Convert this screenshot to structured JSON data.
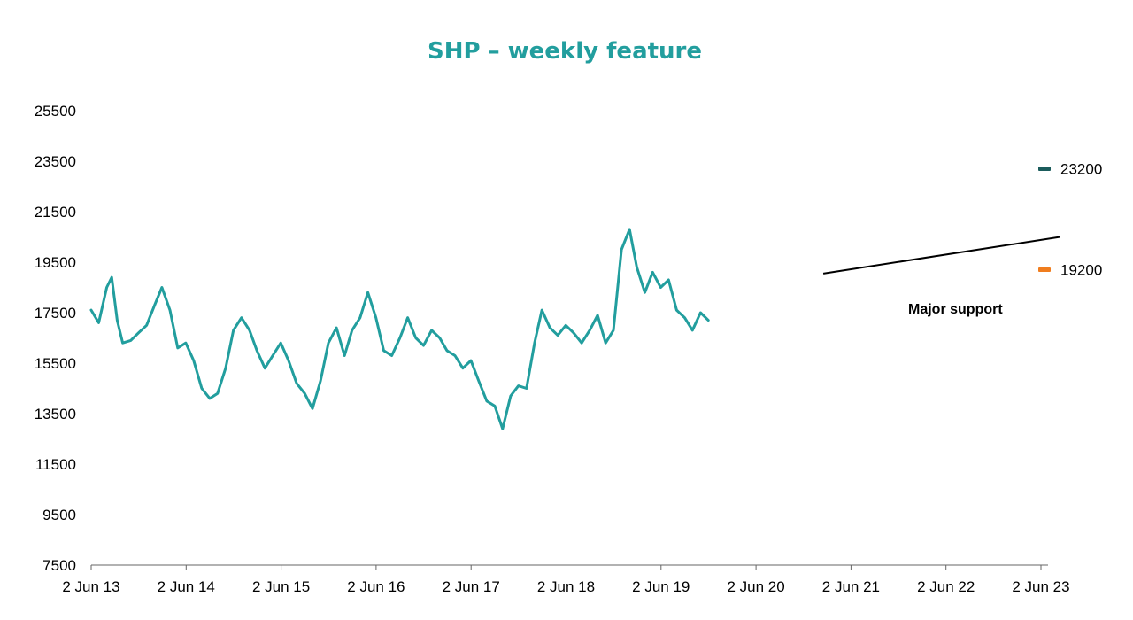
{
  "chart_data": {
    "type": "line",
    "title": "SHP – weekly feature",
    "xlabel": "",
    "ylabel": "",
    "grid": false,
    "legend": "none",
    "x_ticks": [
      "2 Jun 13",
      "2 Jun 14",
      "2 Jun 15",
      "2 Jun 16",
      "2 Jun 17",
      "2 Jun 18",
      "2 Jun 19",
      "2 Jun 20",
      "2 Jun 21",
      "2 Jun 22",
      "2 Jun 23"
    ],
    "x_range": [
      "2013-06-02",
      "2023-06-02"
    ],
    "ylim": [
      7500,
      27500
    ],
    "y_ticks": [
      7500,
      9500,
      11500,
      13500,
      15500,
      17500,
      19500,
      21500,
      23500,
      25500
    ],
    "series": [
      {
        "color": "#229e9e",
        "points": [
          [
            "2013-06-02",
            17600
          ],
          [
            "2013-07-01",
            17100
          ],
          [
            "2013-08-01",
            18500
          ],
          [
            "2013-08-20",
            18900
          ],
          [
            "2013-09-10",
            17200
          ],
          [
            "2013-10-01",
            16300
          ],
          [
            "2013-11-01",
            16400
          ],
          [
            "2013-12-01",
            16700
          ],
          [
            "2014-01-01",
            17000
          ],
          [
            "2014-02-01",
            17800
          ],
          [
            "2014-03-01",
            18500
          ],
          [
            "2014-04-01",
            17600
          ],
          [
            "2014-05-01",
            16100
          ],
          [
            "2014-06-01",
            16300
          ],
          [
            "2014-07-01",
            15600
          ],
          [
            "2014-08-01",
            14500
          ],
          [
            "2014-09-01",
            14100
          ],
          [
            "2014-10-01",
            14300
          ],
          [
            "2014-11-01",
            15300
          ],
          [
            "2014-12-01",
            16800
          ],
          [
            "2015-01-01",
            17300
          ],
          [
            "2015-02-01",
            16800
          ],
          [
            "2015-03-01",
            16000
          ],
          [
            "2015-04-01",
            15300
          ],
          [
            "2015-05-01",
            15800
          ],
          [
            "2015-06-01",
            16300
          ],
          [
            "2015-07-01",
            15600
          ],
          [
            "2015-08-01",
            14700
          ],
          [
            "2015-09-01",
            14300
          ],
          [
            "2015-10-01",
            13700
          ],
          [
            "2015-11-01",
            14800
          ],
          [
            "2015-12-01",
            16300
          ],
          [
            "2016-01-01",
            16900
          ],
          [
            "2016-02-01",
            15800
          ],
          [
            "2016-03-01",
            16800
          ],
          [
            "2016-04-01",
            17300
          ],
          [
            "2016-05-01",
            18300
          ],
          [
            "2016-06-01",
            17300
          ],
          [
            "2016-07-01",
            16000
          ],
          [
            "2016-08-01",
            15800
          ],
          [
            "2016-09-01",
            16500
          ],
          [
            "2016-10-01",
            17300
          ],
          [
            "2016-11-01",
            16500
          ],
          [
            "2016-12-01",
            16200
          ],
          [
            "2017-01-01",
            16800
          ],
          [
            "2017-02-01",
            16500
          ],
          [
            "2017-03-01",
            16000
          ],
          [
            "2017-04-01",
            15800
          ],
          [
            "2017-05-01",
            15300
          ],
          [
            "2017-06-01",
            15600
          ],
          [
            "2017-07-01",
            14800
          ],
          [
            "2017-08-01",
            14000
          ],
          [
            "2017-09-01",
            13800
          ],
          [
            "2017-10-01",
            12900
          ],
          [
            "2017-11-01",
            14200
          ],
          [
            "2017-12-01",
            14600
          ],
          [
            "2018-01-01",
            14500
          ],
          [
            "2018-02-01",
            16300
          ],
          [
            "2018-03-01",
            17600
          ],
          [
            "2018-04-01",
            16900
          ],
          [
            "2018-05-01",
            16600
          ],
          [
            "2018-06-01",
            17000
          ],
          [
            "2018-07-01",
            16700
          ],
          [
            "2018-08-01",
            16300
          ],
          [
            "2018-09-01",
            16800
          ],
          [
            "2018-10-01",
            17400
          ],
          [
            "2018-11-01",
            16300
          ],
          [
            "2018-12-01",
            16800
          ],
          [
            "2019-01-01",
            20000
          ],
          [
            "2019-02-01",
            20800
          ],
          [
            "2019-03-01",
            19300
          ],
          [
            "2019-04-01",
            18300
          ],
          [
            "2019-05-01",
            19100
          ],
          [
            "2019-06-01",
            18500
          ],
          [
            "2019-07-01",
            18800
          ],
          [
            "2019-08-01",
            17600
          ],
          [
            "2019-09-01",
            17300
          ],
          [
            "2019-10-01",
            16800
          ],
          [
            "2019-11-01",
            17500
          ],
          [
            "2019-12-01",
            17200
          ]
        ]
      }
    ]
  },
  "markers": [
    {
      "label": "23200",
      "color": "#1b5c5c"
    },
    {
      "label": "19200",
      "color": "#f07d1e"
    }
  ],
  "annotation": {
    "text": "Major support",
    "line_from": [
      "2021-02-15",
      19050
    ],
    "line_to": [
      "2023-08-15",
      20500
    ]
  },
  "title_color": "#229e9e"
}
